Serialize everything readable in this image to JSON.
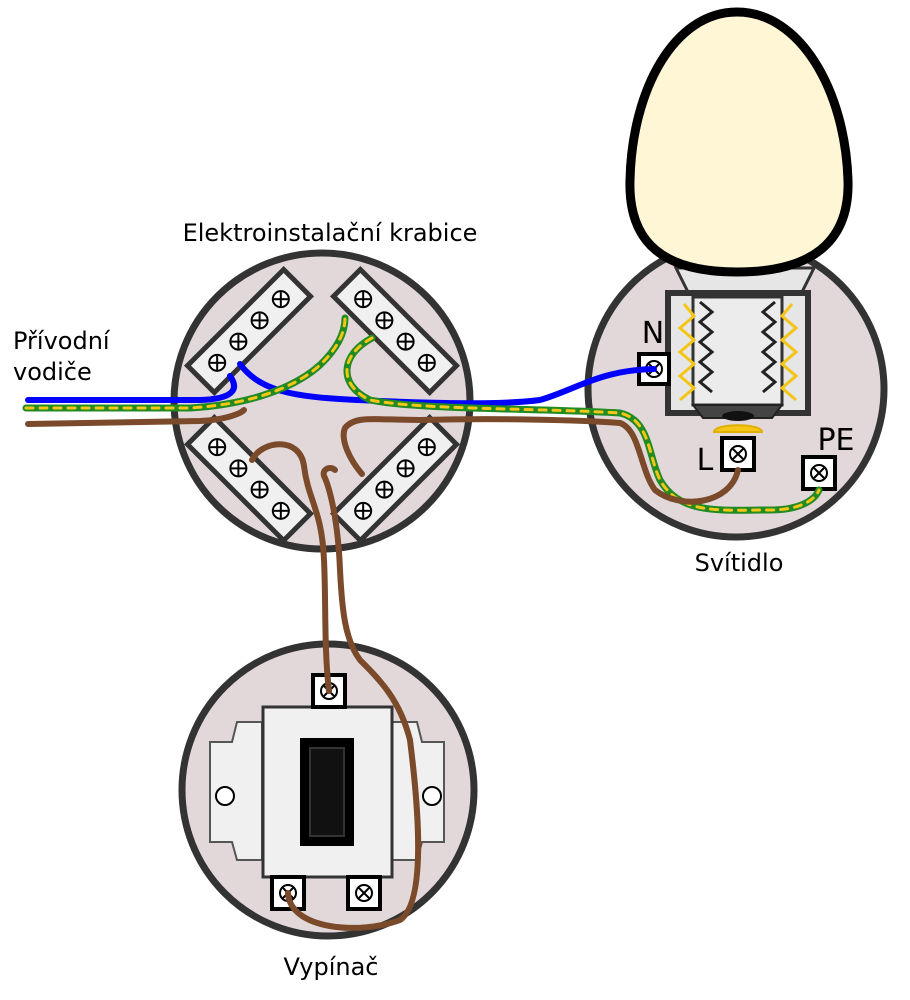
{
  "labels": {
    "junction_box": "Elektroinstalační krabice",
    "supply_line1": "Přívodní",
    "supply_line2": "vodiče",
    "lamp": "Svítidlo",
    "switch": "Vypínač",
    "terminal_n": "N",
    "terminal_l": "L",
    "terminal_pe": "PE"
  },
  "colors": {
    "box_fill": "#e2d8da",
    "box_stroke": "#333333",
    "neutral_wire": "#0000ff",
    "phase_wire": "#7a4a2a",
    "pe_green": "#228b22",
    "pe_yellow": "#f5c518",
    "bulb_glass": "#fff6d5",
    "bulb_filament": "#f5c518",
    "switch_rocker": "#000000",
    "switch_body": "#f0f0f0"
  }
}
